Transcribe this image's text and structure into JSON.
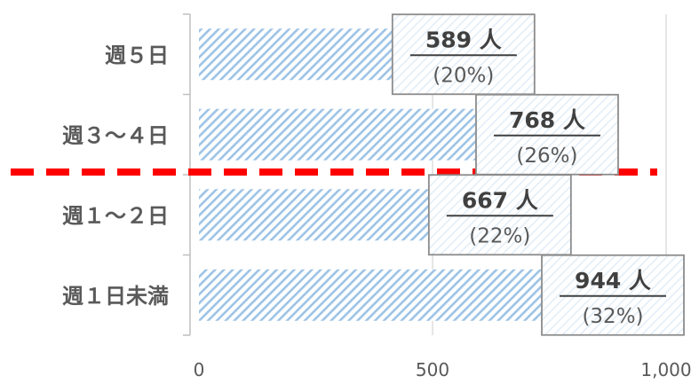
{
  "chart_data": {
    "type": "bar",
    "orientation": "horizontal",
    "categories": [
      "週５日",
      "週３～４日",
      "週１～２日",
      "週１日未満"
    ],
    "values": [
      589,
      768,
      667,
      944
    ],
    "value_labels": [
      "589 人",
      "768 人",
      "667 人",
      "944 人"
    ],
    "percent_labels": [
      "(20%)",
      "(26%)",
      "(22%)",
      "(32%)"
    ],
    "x_ticks": [
      0,
      500,
      1000
    ],
    "x_tick_labels": [
      "0",
      "500",
      "1,000"
    ],
    "xlim": [
      0,
      1000
    ],
    "grid": "vertical",
    "bar_style": "diagonal-hatch",
    "bar_color": "#9DC3E6",
    "divider": {
      "style": "dashed",
      "color": "#FF0000",
      "between": [
        "週３～４日",
        "週１～２日"
      ]
    },
    "title": "",
    "xlabel": "",
    "ylabel": ""
  }
}
